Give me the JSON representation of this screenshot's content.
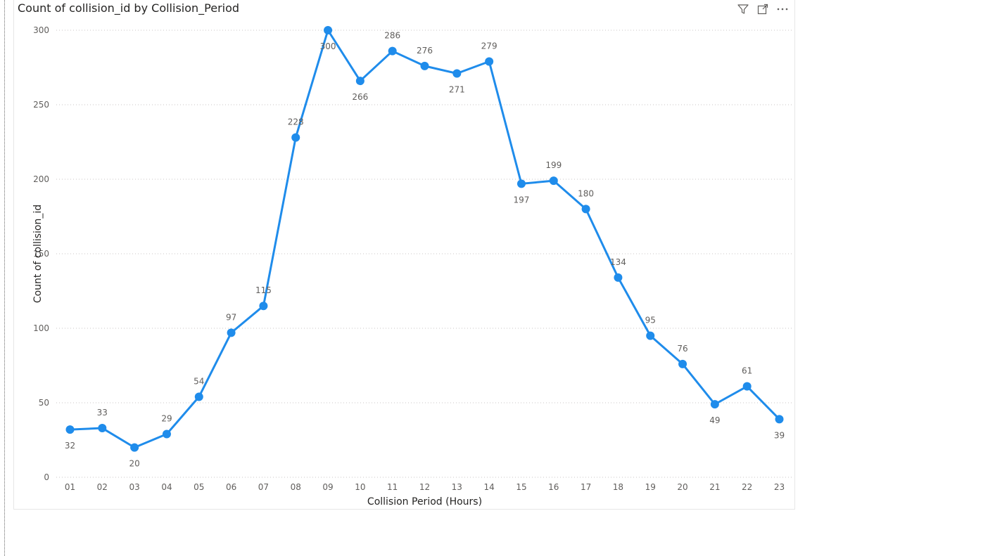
{
  "visual": {
    "title": "Count of collision_id by Collision_Period",
    "header_icons": [
      "filter-icon",
      "focus-mode-icon",
      "more-options-icon"
    ]
  },
  "chart_data": {
    "type": "line",
    "title": "Count of collision_id by Collision_Period",
    "xlabel": "Collision Period (Hours)",
    "ylabel": "Count of collision_id",
    "categories": [
      "01",
      "02",
      "03",
      "04",
      "05",
      "06",
      "07",
      "08",
      "09",
      "10",
      "11",
      "12",
      "13",
      "14",
      "15",
      "16",
      "17",
      "18",
      "19",
      "20",
      "21",
      "22",
      "23"
    ],
    "values": [
      32,
      33,
      20,
      29,
      54,
      97,
      115,
      228,
      300,
      266,
      286,
      276,
      271,
      279,
      197,
      199,
      180,
      134,
      95,
      76,
      49,
      61,
      39
    ],
    "label_position": [
      "below",
      "above",
      "below",
      "above",
      "above",
      "above",
      "above",
      "above",
      "below",
      "below",
      "above",
      "above",
      "below",
      "above",
      "below",
      "above",
      "above",
      "above",
      "above",
      "above",
      "below",
      "above",
      "below"
    ],
    "y_ticks": [
      0,
      50,
      100,
      150,
      200,
      250,
      300
    ],
    "ylim": [
      0,
      300
    ],
    "grid": "horizontal-dotted",
    "series_color": "#1f8ceb"
  }
}
